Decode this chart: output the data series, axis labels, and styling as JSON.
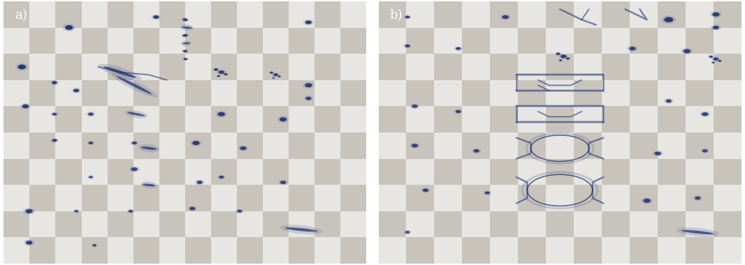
{
  "figure_width": 10.66,
  "figure_height": 3.8,
  "dpi": 100,
  "checker_light": "#e8e6e2",
  "checker_dark": "#c8c4bc",
  "cell_dark": "#1a2a6a",
  "cell_mid": "#6070a0",
  "cell_light": "#9aa0c0",
  "label_a": "a)",
  "label_b": "b)",
  "label_fontsize": 13,
  "label_color": "#ffffff",
  "outer_bg": "#ffffff",
  "checker_nx_a": 14,
  "checker_ny_a": 10,
  "checker_nx_b": 13,
  "checker_ny_b": 10
}
